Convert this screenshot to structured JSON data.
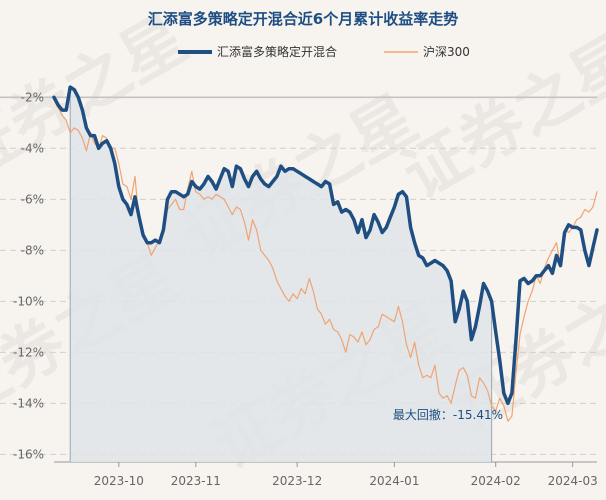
{
  "chart_data": {
    "type": "line",
    "title": "汇添富多策略定开混合近6个月累计收益率走势",
    "watermark": "证券之星",
    "ylim": [
      -16.3,
      -1.4
    ],
    "xlim": [
      0,
      134
    ],
    "yticks": [
      -2,
      -4,
      -6,
      -8,
      -10,
      -12,
      -14,
      -16
    ],
    "ytick_labels": [
      "-2%",
      "-4%",
      "-6%",
      "-8%",
      "-10%",
      "-12%",
      "-14%",
      "-16%"
    ],
    "xticks": [
      16,
      35,
      60,
      84,
      109,
      128
    ],
    "xtick_labels": [
      "2023-10",
      "2023-11",
      "2023-12",
      "2024-01",
      "2024-02",
      "2024-03"
    ],
    "grid": true,
    "legend_position": "top",
    "annotation": {
      "text": "最大回撤：-15.41%",
      "x": 4,
      "x_end": 108
    },
    "series": [
      {
        "name": "汇添富多策略定开混合",
        "color": "#1f4e82",
        "values": [
          -2.0,
          -2.3,
          -2.5,
          -2.5,
          -1.6,
          -1.7,
          -2.0,
          -2.5,
          -3.2,
          -3.5,
          -3.5,
          -4.0,
          -3.8,
          -3.7,
          -4.0,
          -4.6,
          -5.5,
          -6.0,
          -6.2,
          -6.6,
          -5.9,
          -6.7,
          -7.4,
          -7.7,
          -7.7,
          -7.6,
          -7.7,
          -7.2,
          -6.0,
          -5.7,
          -5.7,
          -5.8,
          -5.9,
          -5.8,
          -5.3,
          -5.5,
          -5.6,
          -5.4,
          -5.1,
          -5.3,
          -5.6,
          -5.2,
          -4.8,
          -4.9,
          -5.5,
          -4.7,
          -4.8,
          -5.2,
          -5.5,
          -5.1,
          -4.9,
          -5.2,
          -5.4,
          -5.5,
          -5.3,
          -5.1,
          -4.7,
          -4.9,
          -4.8,
          -4.8,
          -4.9,
          -5.0,
          -5.1,
          -5.2,
          -5.3,
          -5.4,
          -5.5,
          -5.3,
          -5.4,
          -6.2,
          -6.1,
          -6.5,
          -6.4,
          -6.5,
          -6.8,
          -7.3,
          -6.8,
          -7.5,
          -7.2,
          -6.6,
          -6.9,
          -7.3,
          -7.1,
          -6.7,
          -6.3,
          -5.8,
          -5.7,
          -5.9,
          -7.1,
          -7.7,
          -8.2,
          -8.3,
          -8.6,
          -8.5,
          -8.4,
          -8.5,
          -8.6,
          -8.8,
          -9.2,
          -10.8,
          -10.3,
          -9.6,
          -10.0,
          -11.5,
          -11.0,
          -10.2,
          -9.3,
          -9.6,
          -10.0,
          -11.2,
          -12.3,
          -13.6,
          -14.0,
          -13.6,
          -11.5,
          -9.2,
          -9.1,
          -9.3,
          -9.2,
          -9.0,
          -9.0,
          -8.8,
          -8.6,
          -8.9,
          -8.2,
          -8.6,
          -7.3,
          -7.0,
          -7.1,
          -7.1,
          -7.2,
          -8.0,
          -8.6,
          -7.9,
          -7.2
        ]
      },
      {
        "name": "沪深300",
        "color": "#f0a374",
        "values": [
          -2.1,
          -2.4,
          -2.7,
          -2.9,
          -3.4,
          -3.2,
          -3.3,
          -3.6,
          -4.1,
          -3.4,
          -3.8,
          -4.0,
          -3.5,
          -3.6,
          -4.0,
          -4.0,
          -4.6,
          -5.4,
          -5.5,
          -6.0,
          -5.1,
          -6.9,
          -7.3,
          -7.7,
          -8.2,
          -7.9,
          -7.6,
          -7.1,
          -6.4,
          -6.2,
          -6.0,
          -6.4,
          -6.4,
          -5.6,
          -4.9,
          -5.7,
          -5.8,
          -6.0,
          -5.9,
          -6.0,
          -5.8,
          -5.9,
          -6.0,
          -6.3,
          -6.6,
          -6.3,
          -6.4,
          -6.9,
          -7.6,
          -6.8,
          -7.2,
          -8.0,
          -8.2,
          -8.4,
          -8.7,
          -9.2,
          -9.5,
          -9.8,
          -10.0,
          -9.7,
          -9.9,
          -9.5,
          -9.7,
          -9.1,
          -9.6,
          -10.3,
          -10.5,
          -10.9,
          -10.7,
          -11.1,
          -11.2,
          -11.5,
          -12.0,
          -11.3,
          -11.4,
          -11.6,
          -11.2,
          -11.7,
          -11.5,
          -11.1,
          -11.0,
          -10.5,
          -10.6,
          -10.7,
          -10.8,
          -10.2,
          -10.8,
          -11.7,
          -12.2,
          -11.6,
          -12.5,
          -13.0,
          -12.9,
          -13.0,
          -12.5,
          -13.6,
          -13.8,
          -13.7,
          -14.0,
          -13.3,
          -12.7,
          -12.6,
          -12.9,
          -13.7,
          -13.8,
          -13.0,
          -13.2,
          -13.5,
          -14.1,
          -14.3,
          -13.8,
          -14.1,
          -14.7,
          -14.5,
          -12.8,
          -11.3,
          -10.6,
          -10.0,
          -9.6,
          -9.0,
          -9.3,
          -8.7,
          -8.3,
          -8.0,
          -7.7,
          -8.6,
          -7.2,
          -7.3,
          -7.1,
          -6.8,
          -6.7,
          -6.4,
          -6.5,
          -6.3,
          -5.7
        ]
      }
    ]
  }
}
